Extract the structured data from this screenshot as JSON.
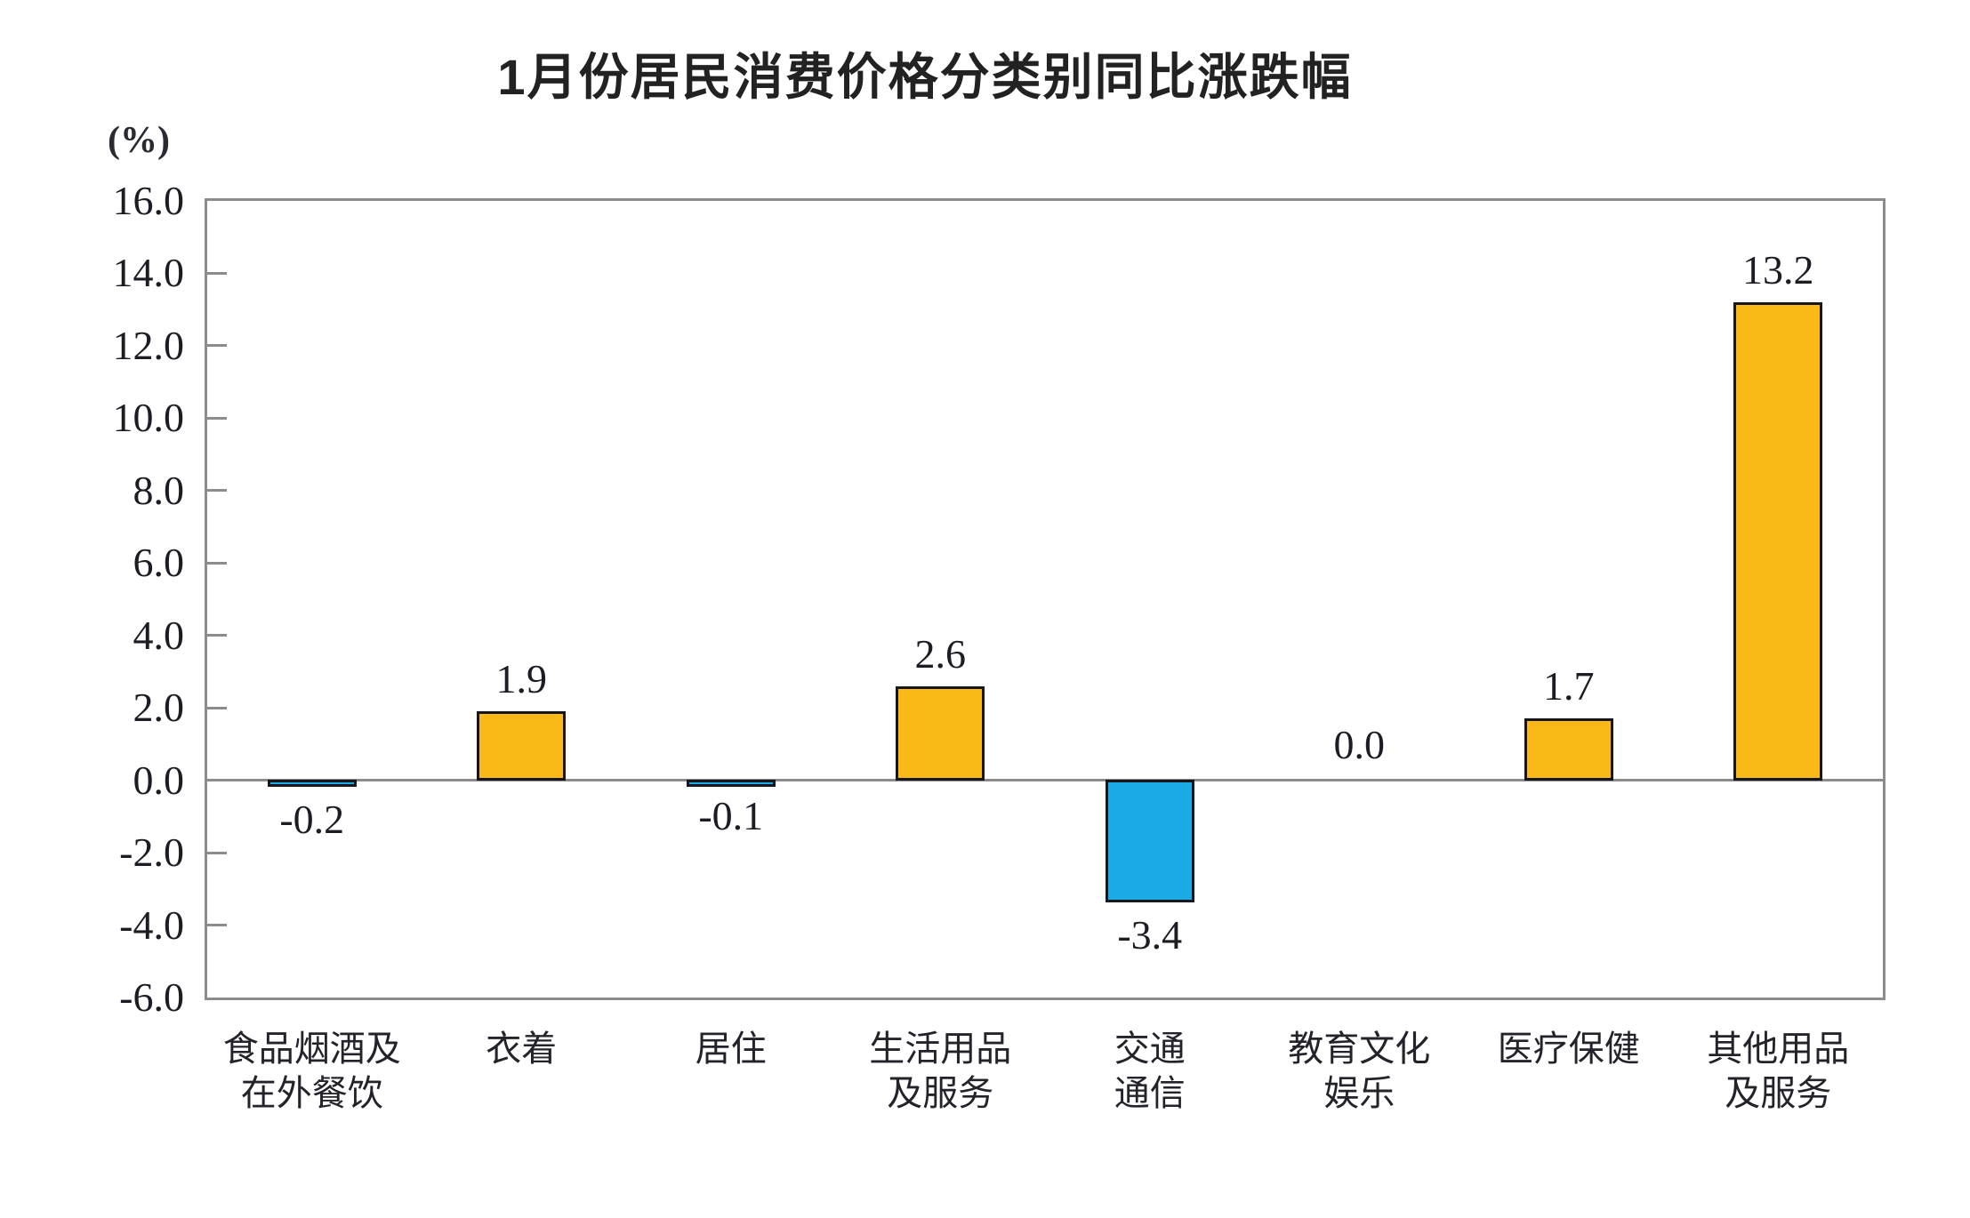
{
  "title": "1月份居民消费价格分类别同比涨跌幅",
  "y_axis_unit": "(%)",
  "chart_data": {
    "type": "bar",
    "title": "1月份居民消费价格分类别同比涨跌幅",
    "xlabel": "",
    "ylabel": "(%)",
    "categories": [
      "食品烟酒及在外餐饮",
      "衣着",
      "居住",
      "生活用品及服务",
      "交通通信",
      "教育文化娱乐",
      "医疗保健",
      "其他用品及服务"
    ],
    "category_label_lines": [
      [
        "食品烟酒及",
        "在外餐饮"
      ],
      [
        "衣着"
      ],
      [
        "居住"
      ],
      [
        "生活用品",
        "及服务"
      ],
      [
        "交通",
        "通信"
      ],
      [
        "教育文化",
        "娱乐"
      ],
      [
        "医疗保健"
      ],
      [
        "其他用品",
        "及服务"
      ]
    ],
    "values": [
      -0.2,
      1.9,
      -0.1,
      2.6,
      -3.4,
      0.0,
      1.7,
      13.2
    ],
    "data_labels": [
      "-0.2",
      "1.9",
      "-0.1",
      "2.6",
      "-3.4",
      "0.0",
      "1.7",
      "13.2"
    ],
    "ylim": [
      -6.0,
      16.0
    ],
    "ytick_step": 2.0,
    "ytick_labels": [
      "16.0",
      "14.0",
      "12.0",
      "10.0",
      "8.0",
      "6.0",
      "4.0",
      "2.0",
      "0.0",
      "-2.0",
      "-4.0",
      "-6.0"
    ],
    "grid": false,
    "legend_position": "none",
    "color_positive": "#FBB917",
    "color_negative": "#1BAAE3",
    "bar_border_color": "#16161e",
    "axis_color": "#8c8c8c"
  }
}
